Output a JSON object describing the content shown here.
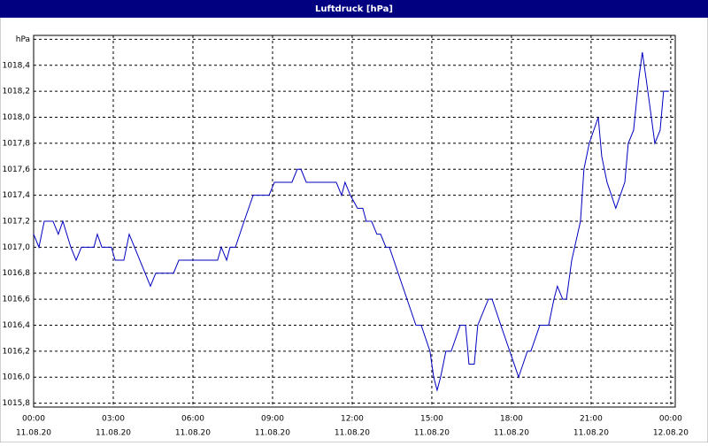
{
  "chart_data": {
    "type": "line",
    "title": "Luftdruck [hPa]",
    "x": [
      0,
      0.2,
      0.4,
      0.73,
      0.93,
      1.1,
      1.4,
      1.6,
      1.8,
      2.27,
      2.4,
      2.57,
      2.93,
      3.07,
      3.4,
      3.6,
      3.8,
      4.2,
      4.4,
      4.6,
      5.27,
      5.47,
      6.93,
      7.07,
      7.27,
      7.4,
      7.6,
      7.93,
      8.27,
      8.87,
      9.07,
      9.73,
      9.93,
      10.07,
      10.27,
      11.4,
      11.6,
      11.73,
      11.93,
      12.2,
      12.4,
      12.53,
      12.73,
      12.93,
      13.07,
      13.27,
      13.4,
      14.4,
      14.6,
      14.93,
      15.07,
      15.2,
      15.33,
      15.53,
      15.73,
      16.07,
      16.27,
      16.4,
      16.6,
      16.73,
      17.13,
      17.27,
      17.6,
      18.27,
      18.6,
      18.73,
      19.07,
      19.4,
      19.6,
      19.73,
      19.93,
      20.07,
      20.27,
      20.6,
      20.73,
      20.93,
      21.27,
      21.4,
      21.6,
      21.93,
      22.27,
      22.4,
      22.6,
      22.8,
      22.93,
      23.07,
      23.27,
      23.4,
      23.6,
      23.73,
      23.93
    ],
    "series": [
      {
        "name": "Luftdruck",
        "color": "#0000c0",
        "values": [
          1017.1,
          1017.0,
          1017.2,
          1017.2,
          1017.1,
          1017.2,
          1017.0,
          1016.9,
          1017.0,
          1017.0,
          1017.1,
          1017.0,
          1017.0,
          1016.9,
          1016.9,
          1017.1,
          1017.0,
          1016.8,
          1016.7,
          1016.8,
          1016.8,
          1016.9,
          1016.9,
          1017.0,
          1016.9,
          1017.0,
          1017.0,
          1017.2,
          1017.4,
          1017.4,
          1017.5,
          1017.5,
          1017.6,
          1017.6,
          1017.5,
          1017.5,
          1017.4,
          1017.5,
          1017.4,
          1017.3,
          1017.3,
          1017.2,
          1017.2,
          1017.1,
          1017.1,
          1017.0,
          1017.0,
          1016.4,
          1016.4,
          1016.2,
          1016.0,
          1015.9,
          1016.0,
          1016.2,
          1016.2,
          1016.4,
          1016.4,
          1016.1,
          1016.1,
          1016.4,
          1016.6,
          1016.6,
          1016.4,
          1016.0,
          1016.2,
          1016.2,
          1016.4,
          1016.4,
          1016.6,
          1016.7,
          1016.6,
          1016.6,
          1016.9,
          1017.2,
          1017.6,
          1017.8,
          1018.0,
          1017.7,
          1017.5,
          1017.3,
          1017.5,
          1017.8,
          1017.9,
          1018.3,
          1018.5,
          1018.3,
          1018.0,
          1017.8,
          1017.9,
          1018.2,
          1018.2
        ]
      }
    ],
    "xlim": [
      0,
      24.17
    ],
    "ylim": [
      1015.77,
      1018.63
    ],
    "xticks": [
      {
        "value": 0,
        "label": "00:00"
      },
      {
        "value": 3,
        "label": "03:00"
      },
      {
        "value": 6,
        "label": "06:00"
      },
      {
        "value": 9,
        "label": "09:00"
      },
      {
        "value": 12,
        "label": "12:00"
      },
      {
        "value": 15,
        "label": "15:00"
      },
      {
        "value": 18,
        "label": "18:00"
      },
      {
        "value": 21,
        "label": "21:00"
      },
      {
        "value": 24,
        "label": "00:00"
      }
    ],
    "xtick_dates": [
      "11.08.20",
      "11.08.20",
      "11.08.20",
      "11.08.20",
      "11.08.20",
      "11.08.20",
      "11.08.20",
      "11.08.20",
      "12.08.20"
    ],
    "yticks": [
      {
        "value": 1015.8,
        "label": "1015,8"
      },
      {
        "value": 1016.0,
        "label": "1016,0"
      },
      {
        "value": 1016.2,
        "label": "1016,2"
      },
      {
        "value": 1016.4,
        "label": "1016,4"
      },
      {
        "value": 1016.6,
        "label": "1016,6"
      },
      {
        "value": 1016.8,
        "label": "1016,8"
      },
      {
        "value": 1017.0,
        "label": "1017,0"
      },
      {
        "value": 1017.2,
        "label": "1017,2"
      },
      {
        "value": 1017.4,
        "label": "1017,4"
      },
      {
        "value": 1017.6,
        "label": "1017,6"
      },
      {
        "value": 1017.8,
        "label": "1017,8"
      },
      {
        "value": 1018.0,
        "label": "1018,0"
      },
      {
        "value": 1018.2,
        "label": "1018,2"
      },
      {
        "value": 1018.4,
        "label": "1018,4"
      },
      {
        "value": 1018.6,
        "label": "hPa"
      }
    ],
    "grid": true
  }
}
